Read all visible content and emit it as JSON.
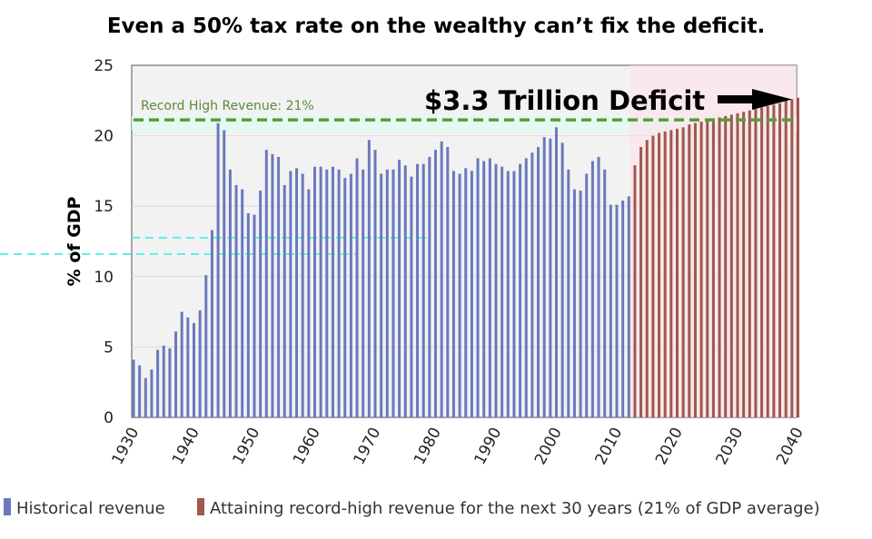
{
  "chart_data": {
    "type": "bar",
    "title": "Even a 50% tax rate on the wealthy can’t fix the deficit.",
    "xlabel": "",
    "ylabel": "% of GDP",
    "ylim": [
      0,
      25
    ],
    "xlim": [
      1930,
      2040
    ],
    "yticks": [
      "0",
      "5",
      "10",
      "15",
      "20",
      "25"
    ],
    "xticks": [
      "1930",
      "1940",
      "1950",
      "1960",
      "1970",
      "1980",
      "1990",
      "2000",
      "2010",
      "2020",
      "2030",
      "2040"
    ],
    "grid": true,
    "legend_position": "bottom",
    "series": [
      {
        "name": "Historical revenue",
        "color": "#6a79bd",
        "x_start": 1930,
        "values": [
          4.1,
          3.7,
          2.8,
          3.4,
          4.8,
          5.1,
          4.9,
          6.1,
          7.5,
          7.1,
          6.7,
          7.6,
          10.1,
          13.3,
          20.9,
          20.4,
          17.6,
          16.5,
          16.2,
          14.5,
          14.4,
          16.1,
          19.0,
          18.7,
          18.5,
          16.5,
          17.5,
          17.7,
          17.3,
          16.2,
          17.8,
          17.8,
          17.6,
          17.8,
          17.6,
          17.0,
          17.3,
          18.4,
          17.6,
          19.7,
          19.0,
          17.3,
          17.6,
          17.6,
          18.3,
          17.9,
          17.1,
          18.0,
          18.0,
          18.5,
          19.0,
          19.6,
          19.2,
          17.5,
          17.3,
          17.7,
          17.5,
          18.4,
          18.2,
          18.4,
          18.0,
          17.8,
          17.5,
          17.5,
          18.0,
          18.4,
          18.8,
          19.2,
          19.9,
          19.8,
          20.6,
          19.5,
          17.6,
          16.2,
          16.1,
          17.3,
          18.2,
          18.5,
          17.6,
          15.1,
          15.1,
          15.4,
          15.7
        ]
      },
      {
        "name": "Attaining record-high revenue for the next 30 years (21% of GDP average)",
        "color": "#a0574c",
        "x_start": 2013,
        "values": [
          17.9,
          19.2,
          19.7,
          20.0,
          20.2,
          20.3,
          20.4,
          20.5,
          20.6,
          20.8,
          20.9,
          21.0,
          21.1,
          21.2,
          21.3,
          21.4,
          21.5,
          21.6,
          21.7,
          21.8,
          21.9,
          22.0,
          22.1,
          22.2,
          22.3,
          22.5,
          22.6,
          22.7
        ]
      }
    ],
    "reference_line": {
      "label": "Record High Revenue: 21%",
      "value": 21,
      "color": "#5b9a3c"
    },
    "annotation": "$3.3 Trillion Deficit"
  }
}
